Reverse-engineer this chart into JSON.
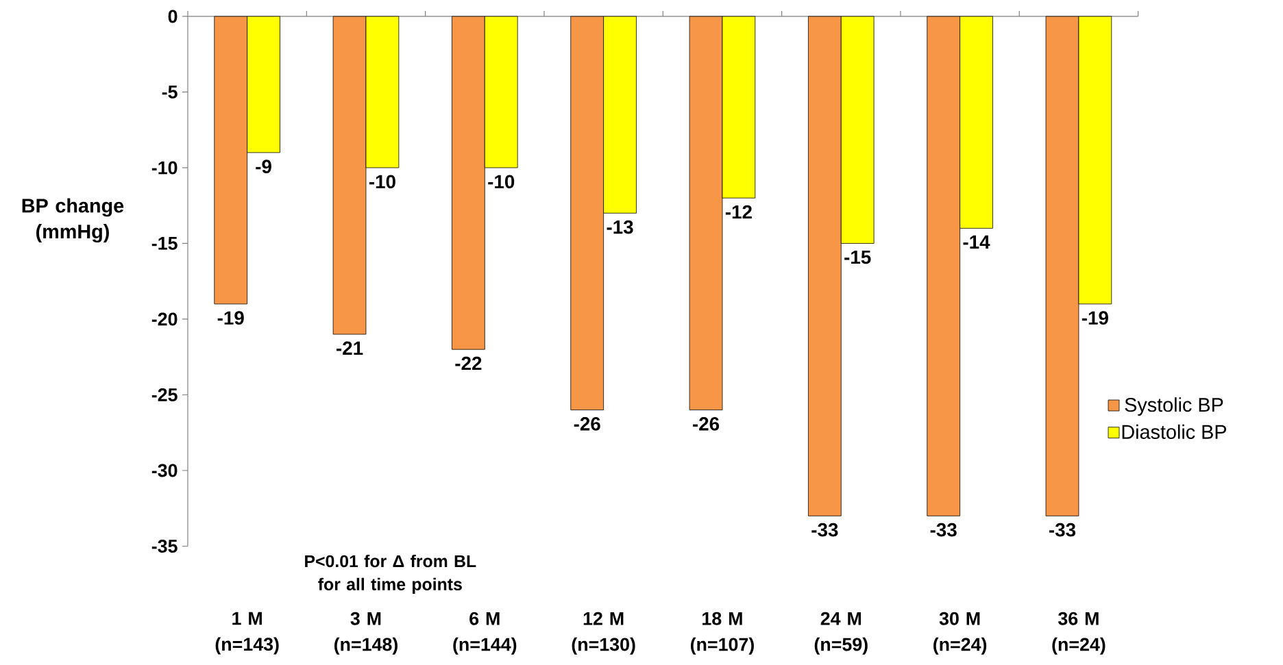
{
  "chart_data": {
    "type": "bar",
    "ylabel": "BP change (mmHg)",
    "categories": [
      "1 M (n=143)",
      "3 M (n=148)",
      "6 M (n=144)",
      "12 M (n=130)",
      "18 M (n=107)",
      "24 M (n=59)",
      "30 M (n=24)",
      "36 M (n=24)"
    ],
    "series": [
      {
        "name": "Systolic BP",
        "color": "#f79646",
        "values": [
          -19,
          -21,
          -22,
          -26,
          -26,
          -33,
          -33,
          -33
        ]
      },
      {
        "name": "Diastolic BP",
        "color": "#ffff00",
        "values": [
          -9,
          -10,
          -10,
          -13,
          -12,
          -15,
          -14,
          -19
        ]
      }
    ],
    "ylim": [
      -35,
      0
    ],
    "yticks": [
      0,
      -5,
      -10,
      -15,
      -20,
      -25,
      -30,
      -35
    ],
    "data_labels": true,
    "legend": "right",
    "grid": false,
    "annotations": [
      "P<0.01  for Δ  from BL for all time points"
    ]
  }
}
